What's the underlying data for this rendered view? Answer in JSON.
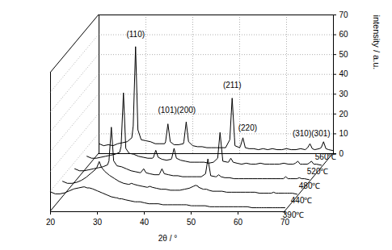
{
  "chart_data": {
    "type": "line",
    "x_label": "2θ / °",
    "y_label": "intensity / a.u.",
    "x": [
      20,
      21,
      22,
      23,
      24,
      25,
      26,
      27,
      27.3,
      27.8,
      28.3,
      29,
      30,
      31,
      32,
      33,
      34,
      34.2,
      34.7,
      35.2,
      36,
      37,
      38,
      38.1,
      38.6,
      39.1,
      40,
      41,
      42,
      43,
      44,
      45,
      46,
      47,
      47.9,
      48.4,
      48.9,
      49,
      50,
      50.2,
      50.7,
      51.2,
      52,
      53,
      54,
      55,
      56,
      57,
      58,
      59,
      60,
      61,
      62,
      63,
      64,
      64.5,
      65,
      65.5,
      66,
      67,
      67.4,
      67.9,
      68.4,
      69,
      70
    ],
    "series": [
      {
        "name": "390℃",
        "color": "#000000",
        "values": [
          10,
          9,
          9,
          9.5,
          10.5,
          11.5,
          12,
          12.5,
          12.5,
          12,
          12,
          11.5,
          10.5,
          9.5,
          8.5,
          7.5,
          7,
          7,
          6.5,
          6.5,
          6,
          5.5,
          5,
          5,
          5,
          5,
          4.5,
          4,
          4,
          4,
          3.5,
          3.5,
          3.5,
          3.5,
          3.5,
          3.5,
          3.5,
          3.5,
          3,
          3,
          3,
          3,
          3,
          3,
          2.5,
          2.5,
          2.5,
          2.5,
          2.5,
          2.5,
          2.5,
          2.5,
          2.5,
          2,
          2,
          2,
          2,
          2,
          2,
          2,
          2,
          2,
          2,
          2,
          2
        ]
      },
      {
        "name": "440℃",
        "color": "#000000",
        "values": [
          8,
          7,
          7,
          7.5,
          8.5,
          10,
          12,
          14,
          15,
          18,
          15,
          13,
          11,
          9.5,
          8,
          7,
          6.5,
          6.5,
          7,
          6.5,
          6,
          5.5,
          5,
          5,
          5.5,
          5,
          4.5,
          4,
          4,
          3.5,
          3.5,
          3.5,
          4,
          4.5,
          5.5,
          6,
          5.5,
          5,
          4,
          4,
          4,
          3.5,
          3,
          3,
          3,
          2.5,
          2.5,
          2.5,
          2.5,
          2.5,
          2.5,
          2.5,
          2,
          2,
          2,
          2,
          2.5,
          2,
          2,
          2,
          2,
          2,
          2,
          2,
          1.5
        ]
      },
      {
        "name": "480℃",
        "color": "#000000",
        "values": [
          7,
          6,
          6,
          6.5,
          7,
          7.5,
          8,
          9,
          11,
          28,
          11,
          8.5,
          8,
          7,
          6,
          5.5,
          5,
          5.5,
          7,
          5,
          4.5,
          4,
          4,
          4.5,
          7,
          4.5,
          4,
          3.5,
          3.5,
          3,
          3,
          3,
          3,
          3,
          4.5,
          12,
          5,
          3.5,
          3,
          3,
          4,
          3,
          2.5,
          2.5,
          2,
          2,
          2,
          2,
          2,
          2,
          2,
          2,
          2,
          2,
          2,
          2,
          3,
          2,
          2,
          2,
          2,
          2.5,
          2,
          2,
          1.5
        ]
      },
      {
        "name": "520℃",
        "color": "#000000",
        "values": [
          6,
          5,
          5,
          5.5,
          6,
          6.5,
          7,
          8,
          11,
          38,
          10,
          7.5,
          7,
          6,
          5.5,
          5,
          5,
          5.5,
          9,
          5.5,
          4.5,
          4,
          4.5,
          5,
          10,
          5,
          4,
          3.5,
          3,
          3,
          3,
          3,
          2.5,
          3,
          5,
          18,
          6,
          3.5,
          3,
          3,
          5,
          3,
          2.5,
          2,
          2.5,
          2,
          2,
          2.5,
          2,
          2,
          2,
          2,
          2.5,
          2,
          2,
          2.5,
          3.5,
          2,
          2,
          2,
          2.5,
          3.5,
          2,
          2,
          1.5
        ]
      },
      {
        "name": "560℃",
        "color": "#000000",
        "values": [
          5,
          4,
          4.5,
          4,
          5,
          5.5,
          6,
          8,
          14,
          54,
          12,
          7,
          6.5,
          6,
          5,
          5,
          5,
          6,
          15,
          6,
          4.5,
          4.5,
          5,
          6,
          16,
          6,
          4,
          3.5,
          3.5,
          3,
          3,
          3,
          3,
          3,
          7,
          28,
          8,
          4,
          3,
          4,
          8,
          3,
          2.5,
          2.5,
          2,
          2.5,
          2,
          2.5,
          2,
          2,
          2.5,
          2,
          2,
          2.5,
          2,
          3,
          5,
          2.5,
          2,
          2.5,
          3,
          6,
          2.5,
          2,
          1.5
        ]
      }
    ],
    "xlim": [
      20,
      70
    ],
    "xticks": [
      20,
      30,
      40,
      50,
      60,
      70
    ],
    "ylim": [
      0,
      70
    ],
    "yticks": [
      0,
      10,
      20,
      30,
      40,
      50,
      60,
      70
    ],
    "grid": true,
    "annotations": [
      {
        "text": "(110)",
        "x": 27.8,
        "y": 60
      },
      {
        "text": "(101)(200)",
        "x": 36.6,
        "y": 22
      },
      {
        "text": "(211)",
        "x": 48.4,
        "y": 34.5
      },
      {
        "text": "(220)",
        "x": 51.7,
        "y": 13
      },
      {
        "text": "(310)(301)",
        "x": 65.3,
        "y": 10
      }
    ]
  }
}
